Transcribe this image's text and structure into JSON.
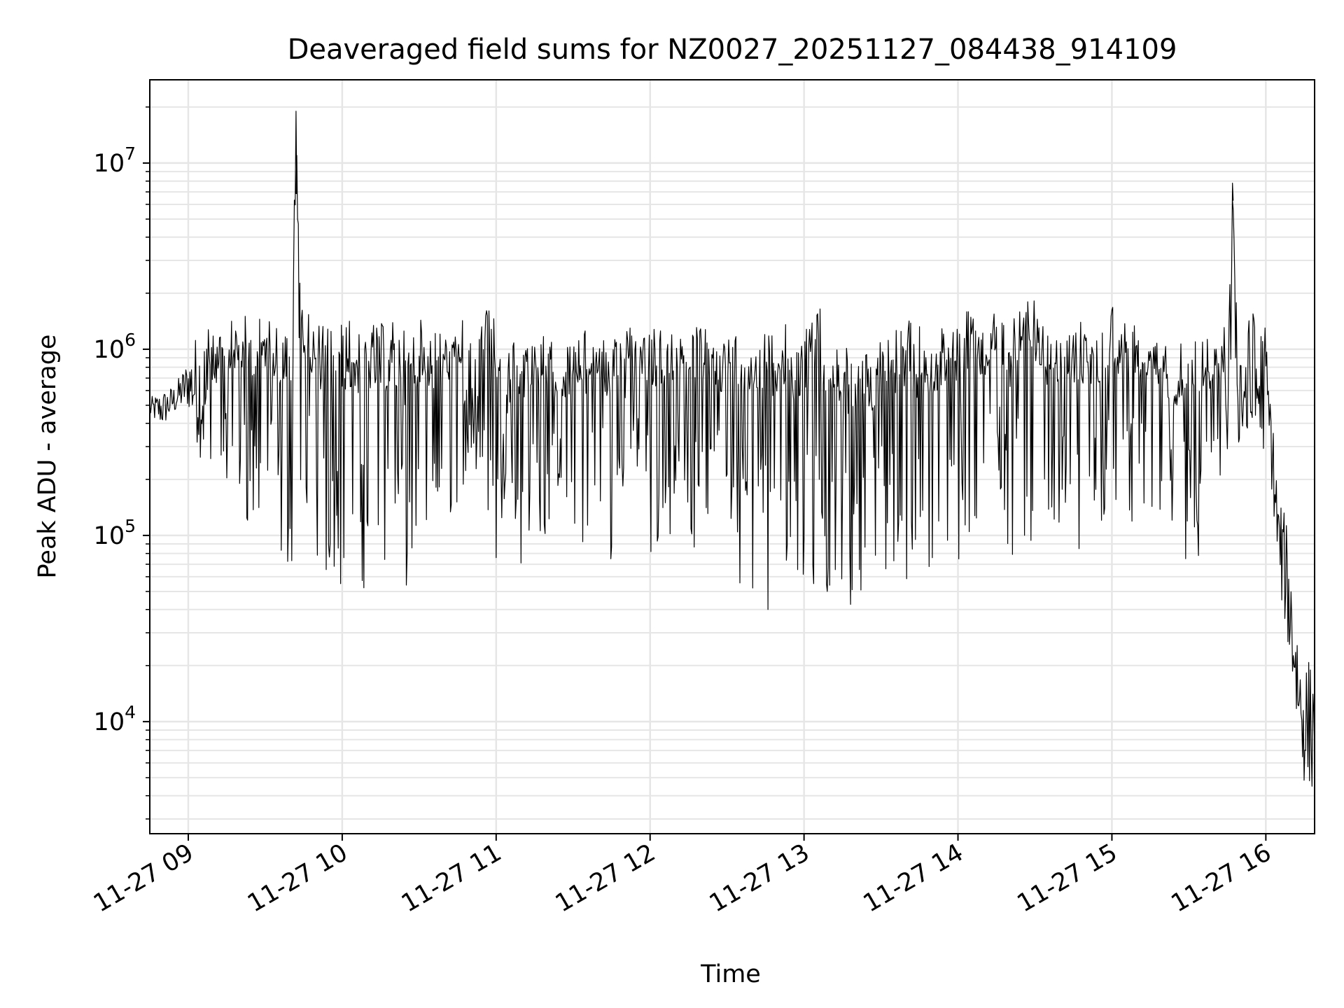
{
  "chart_data": {
    "type": "line",
    "title": "Deaveraged field sums for NZ0027_20251127_084438_914109",
    "xlabel": "Time",
    "ylabel": "Peak ADU - average",
    "xlim": [
      "2025-11-27 08:45",
      "2025-11-27 16:19"
    ],
    "ylim": [
      2500,
      28000000
    ],
    "yscale": "log",
    "grid": true,
    "legend": "none",
    "line_color": "#000000",
    "grid_color": "#e6e6e6",
    "x_ticks": [
      "11-27 09",
      "11-27 10",
      "11-27 11",
      "11-27 12",
      "11-27 13",
      "11-27 14",
      "11-27 15",
      "11-27 16"
    ],
    "y_ticks": [
      {
        "value": 10000,
        "base": "10",
        "exp": "4"
      },
      {
        "value": 100000,
        "base": "10",
        "exp": "5"
      },
      {
        "value": 1000000,
        "base": "10",
        "exp": "6"
      },
      {
        "value": 10000000,
        "base": "10",
        "exp": "7"
      }
    ],
    "series": [
      {
        "x": [
          "2025-11-27 08:45",
          "2025-11-27 08:50",
          "2025-11-27 08:55",
          "2025-11-27 09:00",
          "2025-11-27 09:05",
          "2025-11-27 09:10",
          "2025-11-27 09:15",
          "2025-11-27 09:20",
          "2025-11-27 09:25",
          "2025-11-27 09:30",
          "2025-11-27 09:35",
          "2025-11-27 09:40",
          "2025-11-27 09:42",
          "2025-11-27 09:45",
          "2025-11-27 09:50",
          "2025-11-27 09:55",
          "2025-11-27 10:00",
          "2025-11-27 10:05",
          "2025-11-27 10:10",
          "2025-11-27 10:15",
          "2025-11-27 10:20",
          "2025-11-27 10:25",
          "2025-11-27 10:30",
          "2025-11-27 10:35",
          "2025-11-27 10:40",
          "2025-11-27 10:45",
          "2025-11-27 10:50",
          "2025-11-27 10:55",
          "2025-11-27 11:00",
          "2025-11-27 11:05",
          "2025-11-27 11:10",
          "2025-11-27 11:15",
          "2025-11-27 11:20",
          "2025-11-27 11:25",
          "2025-11-27 11:30",
          "2025-11-27 11:35",
          "2025-11-27 11:40",
          "2025-11-27 11:45",
          "2025-11-27 11:50",
          "2025-11-27 11:55",
          "2025-11-27 12:00",
          "2025-11-27 12:05",
          "2025-11-27 12:10",
          "2025-11-27 12:15",
          "2025-11-27 12:20",
          "2025-11-27 12:25",
          "2025-11-27 12:30",
          "2025-11-27 12:35",
          "2025-11-27 12:40",
          "2025-11-27 12:45",
          "2025-11-27 12:50",
          "2025-11-27 12:55",
          "2025-11-27 13:00",
          "2025-11-27 13:05",
          "2025-11-27 13:10",
          "2025-11-27 13:15",
          "2025-11-27 13:20",
          "2025-11-27 13:25",
          "2025-11-27 13:30",
          "2025-11-27 13:35",
          "2025-11-27 13:40",
          "2025-11-27 13:45",
          "2025-11-27 13:50",
          "2025-11-27 13:55",
          "2025-11-27 14:00",
          "2025-11-27 14:05",
          "2025-11-27 14:10",
          "2025-11-27 14:15",
          "2025-11-27 14:20",
          "2025-11-27 14:25",
          "2025-11-27 14:30",
          "2025-11-27 14:35",
          "2025-11-27 14:40",
          "2025-11-27 14:45",
          "2025-11-27 14:50",
          "2025-11-27 14:55",
          "2025-11-27 15:00",
          "2025-11-27 15:05",
          "2025-11-27 15:10",
          "2025-11-27 15:15",
          "2025-11-27 15:20",
          "2025-11-27 15:25",
          "2025-11-27 15:30",
          "2025-11-27 15:35",
          "2025-11-27 15:40",
          "2025-11-27 15:45",
          "2025-11-27 15:47",
          "2025-11-27 15:50",
          "2025-11-27 15:55",
          "2025-11-27 16:00",
          "2025-11-27 16:02",
          "2025-11-27 16:05",
          "2025-11-27 16:08",
          "2025-11-27 16:11",
          "2025-11-27 16:14",
          "2025-11-27 16:17",
          "2025-11-27 16:19"
        ],
        "high": [
          550000,
          600000,
          650000,
          900000,
          1500000,
          1200000,
          1400000,
          1500000,
          1600000,
          1500000,
          1500000,
          1600000,
          19000000,
          1600000,
          1500000,
          1500000,
          1600000,
          1500000,
          1500000,
          1400000,
          1500000,
          1300000,
          1500000,
          1400000,
          1300000,
          1500000,
          1400000,
          1800000,
          1500000,
          1200000,
          1300000,
          1300000,
          1200000,
          1000000,
          1200000,
          1300000,
          1300000,
          1000000,
          1700000,
          1400000,
          1400000,
          1300000,
          1400000,
          1500000,
          1400000,
          1200000,
          1300000,
          1400000,
          1500000,
          1400000,
          1500000,
          1300000,
          1500000,
          2000000,
          1500000,
          1200000,
          1100000,
          1000000,
          1400000,
          1400000,
          1500000,
          1400000,
          1200000,
          1400000,
          1500000,
          1800000,
          1200000,
          1700000,
          1500000,
          2200000,
          1800000,
          1300000,
          1200000,
          1400000,
          1500000,
          1200000,
          2000000,
          1600000,
          1300000,
          1200000,
          1200000,
          1000000,
          1400000,
          1300000,
          1100000,
          1500000,
          7800000,
          1400000,
          1600000,
          1400000,
          550000,
          170000,
          120000,
          50000,
          22000,
          22000,
          20000
        ],
        "low": [
          420000,
          380000,
          450000,
          480000,
          250000,
          120000,
          200000,
          120000,
          90000,
          150000,
          70000,
          60000,
          120000,
          150000,
          60000,
          55000,
          50000,
          45000,
          55000,
          60000,
          55000,
          40000,
          80000,
          60000,
          100000,
          150000,
          250000,
          180000,
          70000,
          250000,
          50000,
          120000,
          80000,
          100000,
          90000,
          60000,
          150000,
          60000,
          150000,
          200000,
          70000,
          100000,
          70000,
          120000,
          50000,
          100000,
          70000,
          45000,
          40000,
          35000,
          60000,
          50000,
          45000,
          40000,
          38000,
          35000,
          40000,
          40000,
          60000,
          45000,
          50000,
          45000,
          60000,
          100000,
          60000,
          100000,
          150000,
          200000,
          60000,
          80000,
          90000,
          100000,
          120000,
          90000,
          70000,
          100000,
          80000,
          60000,
          150000,
          120000,
          90000,
          80000,
          60000,
          70000,
          100000,
          200000,
          400000,
          250000,
          200000,
          300000,
          200000,
          50000,
          30000,
          12000,
          5000,
          4000,
          4500
        ]
      }
    ]
  }
}
